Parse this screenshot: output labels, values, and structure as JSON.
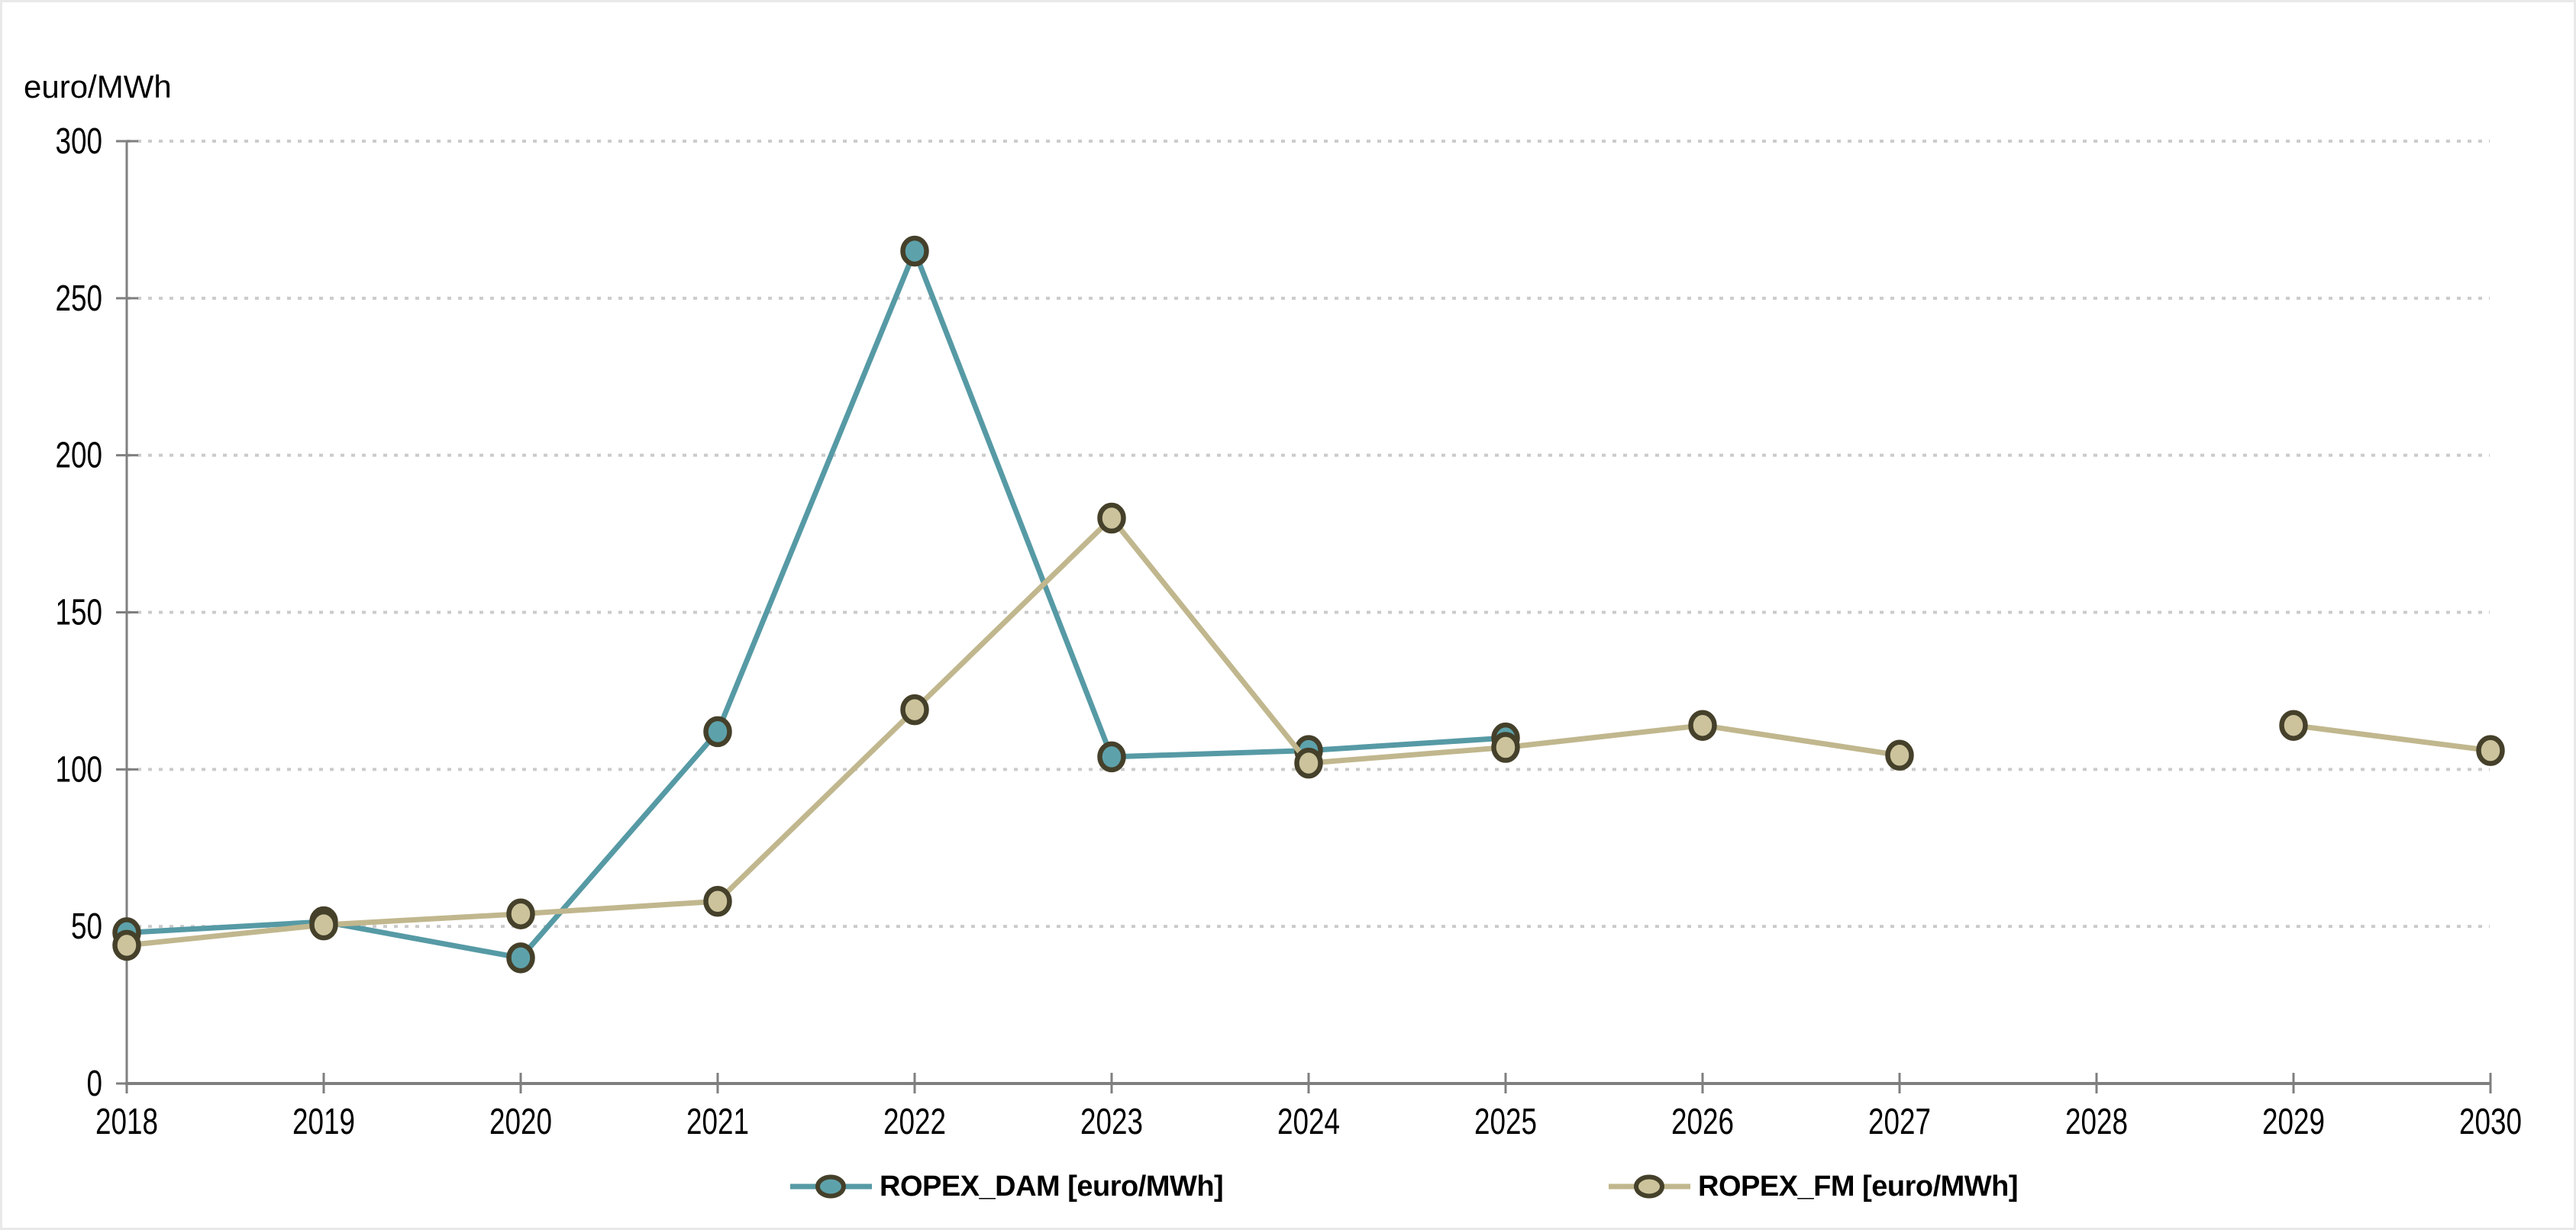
{
  "window": {
    "background": "#ffffff",
    "border_color": "#e9e9e9"
  },
  "chart_data": {
    "type": "line",
    "title": "euro/MWh",
    "categories": [
      "2018",
      "2019",
      "2020",
      "2021",
      "2022",
      "2023",
      "2024",
      "2025",
      "2026",
      "2027",
      "2028",
      "2029",
      "2030"
    ],
    "xlabel": "",
    "ylabel": "euro/MWh",
    "ylim": [
      0,
      300
    ],
    "y_ticks": [
      0,
      50,
      100,
      150,
      200,
      250,
      300
    ],
    "grid": "horizontal dotted gridlines at every y tick",
    "legend_position": "bottom center",
    "axis_color": "#7f7f7f",
    "grid_color": "#cbcbcb",
    "text_color": "#000000",
    "marker_ring_color": "#45402a",
    "series": [
      {
        "name": "ROPEX_DAM [euro/MWh]",
        "line_color": "#569aa5",
        "marker_fill": "#5da2ab",
        "values": [
          48,
          51.5,
          40,
          112,
          265,
          104,
          106,
          110,
          null,
          null,
          null,
          null,
          null
        ]
      },
      {
        "name": "ROPEX_FM [euro/MWh]",
        "line_color": "#c1b78e",
        "marker_fill": "#ccc39c",
        "values": [
          44,
          50.5,
          54,
          58,
          119,
          180,
          102,
          107,
          114,
          104.5,
          null,
          114,
          106
        ]
      }
    ]
  }
}
